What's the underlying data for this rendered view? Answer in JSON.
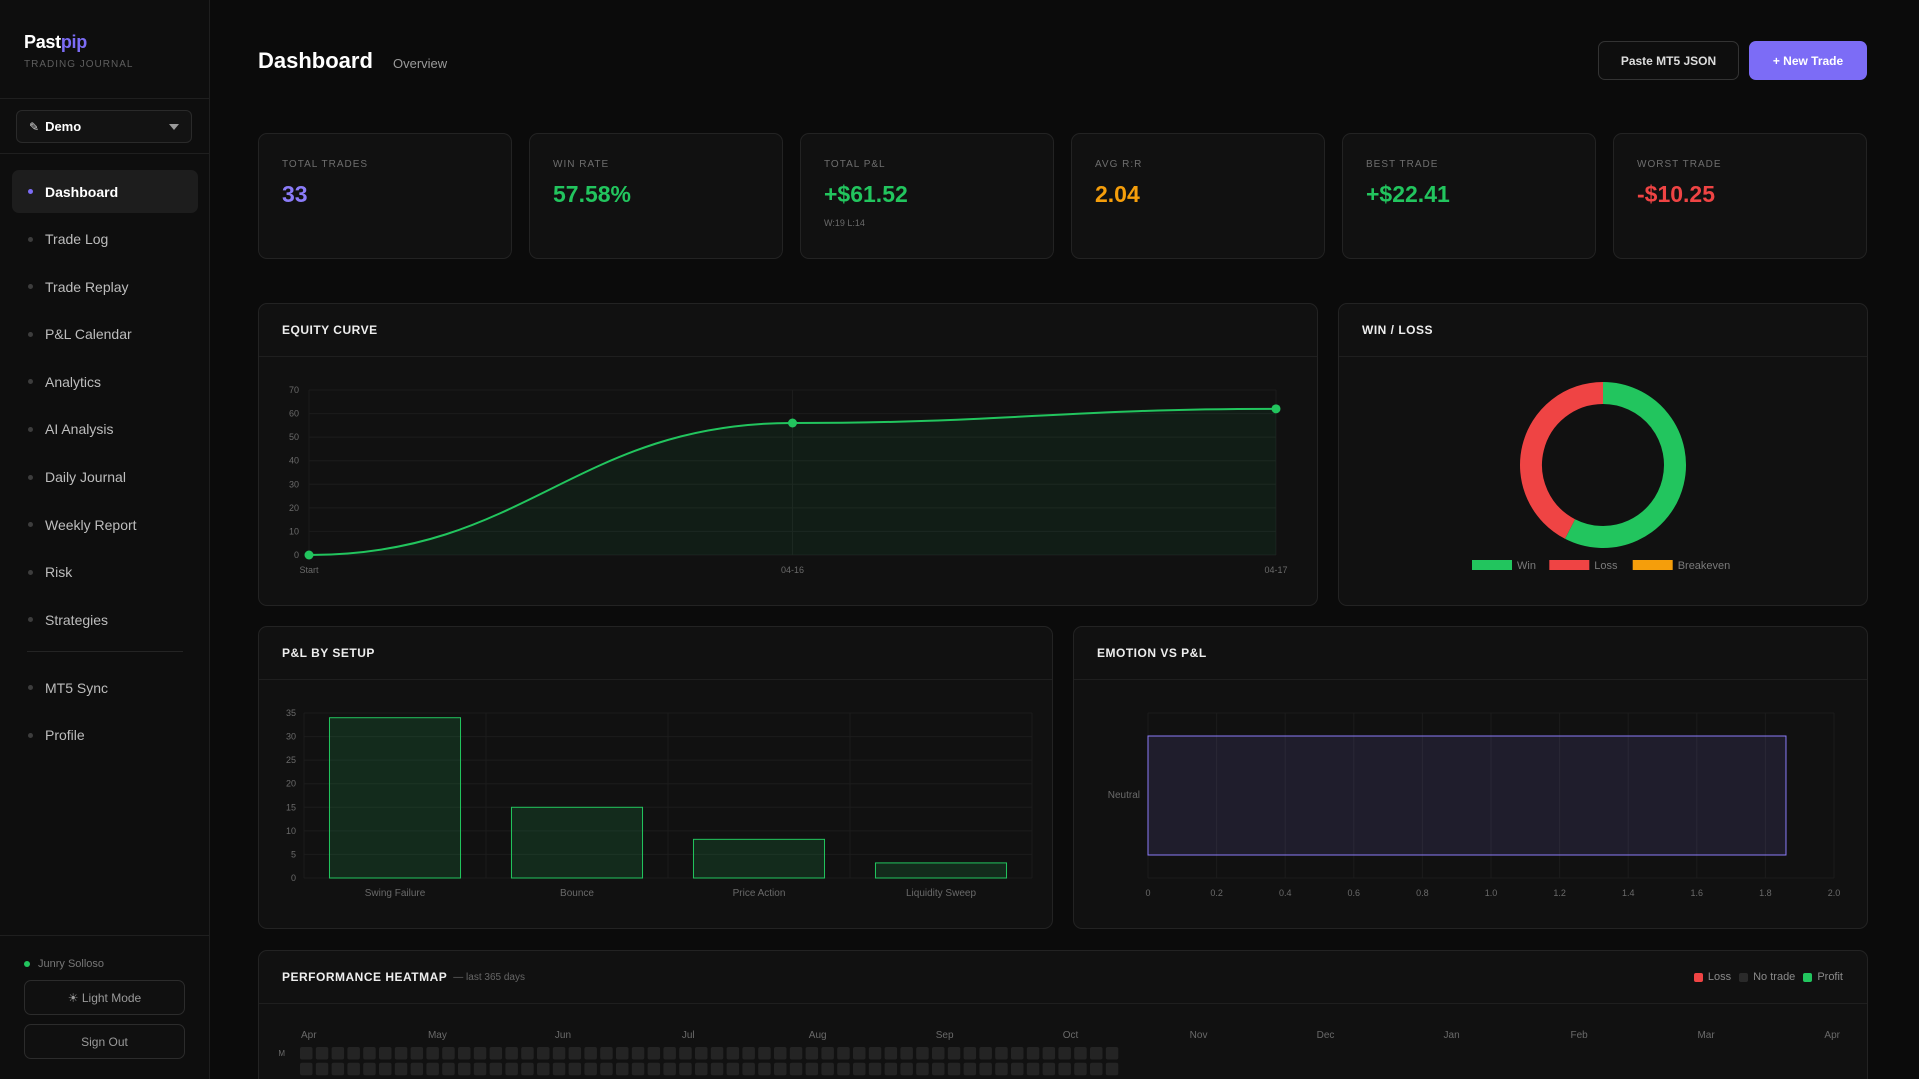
{
  "brand": {
    "name_main": "Past",
    "name_accent": "pip",
    "subtitle": "TRADING JOURNAL"
  },
  "account": {
    "selected": "Demo"
  },
  "nav": {
    "items": [
      {
        "label": "Dashboard",
        "active": true
      },
      {
        "label": "Trade Log"
      },
      {
        "label": "Trade Replay"
      },
      {
        "label": "P&L Calendar"
      },
      {
        "label": "Analytics"
      },
      {
        "label": "AI Analysis"
      },
      {
        "label": "Daily Journal"
      },
      {
        "label": "Weekly Report"
      },
      {
        "label": "Risk"
      },
      {
        "label": "Strategies"
      }
    ],
    "secondary": [
      {
        "label": "MT5 Sync"
      },
      {
        "label": "Profile"
      }
    ]
  },
  "user": {
    "name": "Junry Solloso"
  },
  "sidebar_buttons": {
    "light_mode": "☀ Light Mode",
    "sign_out": "Sign Out"
  },
  "header": {
    "title": "Dashboard",
    "subtitle": "Overview",
    "paste_label": "Paste MT5 JSON",
    "new_trade_label": "+ New Trade"
  },
  "stats": [
    {
      "label": "Total Trades",
      "value": "33",
      "color": "#8b7cf8"
    },
    {
      "label": "Win Rate",
      "value": "57.58%",
      "color": "#22c55e"
    },
    {
      "label": "Total P&L",
      "value": "+$61.52",
      "color": "#22c55e",
      "note": "W:19 L:14"
    },
    {
      "label": "Avg R:R",
      "value": "2.04",
      "color": "#f59e0b"
    },
    {
      "label": "Best Trade",
      "value": "+$22.41",
      "color": "#22c55e"
    },
    {
      "label": "Worst Trade",
      "value": "-$10.25",
      "color": "#ef4444"
    }
  ],
  "panels": {
    "equity": "EQUITY CURVE",
    "winloss": "WIN / LOSS",
    "setup": "P&L BY SETUP",
    "emotion": "EMOTION VS P&L",
    "heatmap": "PERFORMANCE HEATMAP",
    "heatmap_sub": "— last 365 days"
  },
  "chart_data": [
    {
      "type": "line",
      "x": [
        "Start",
        "04-16",
        "04-17"
      ],
      "values": [
        0,
        56,
        62
      ],
      "ylim": [
        0,
        70
      ],
      "yticks": [
        0,
        10,
        20,
        30,
        40,
        50,
        60,
        70
      ],
      "color": "#22c55e"
    },
    {
      "type": "pie",
      "categories": [
        "Win",
        "Loss",
        "Breakeven"
      ],
      "values": [
        19,
        14,
        0
      ],
      "colors": [
        "#22c55e",
        "#ef4444",
        "#f59e0b"
      ],
      "legend": "bottom"
    },
    {
      "type": "bar",
      "categories": [
        "Swing Failure",
        "Bounce",
        "Price Action",
        "Liquidity Sweep"
      ],
      "values": [
        34,
        15,
        8.2,
        3.2
      ],
      "ylim": [
        0,
        35
      ],
      "yticks": [
        0,
        5,
        10,
        15,
        20,
        25,
        30,
        35
      ],
      "color": "#22c55e"
    },
    {
      "type": "bar",
      "orientation": "horizontal",
      "categories": [
        "Neutral"
      ],
      "values": [
        1.86
      ],
      "xlim": [
        0,
        2.0
      ],
      "xticks": [
        "0",
        "0.2",
        "0.4",
        "0.6",
        "0.8",
        "1.0",
        "1.2",
        "1.4",
        "1.6",
        "1.8",
        "2.0"
      ],
      "color": "#8b7cf8"
    },
    {
      "type": "heatmap",
      "months": [
        "Apr",
        "May",
        "Jun",
        "Jul",
        "Aug",
        "Sep",
        "Oct",
        "Nov",
        "Dec",
        "Jan",
        "Feb",
        "Mar",
        "Apr"
      ],
      "row_label": "M",
      "legend": [
        {
          "label": "Loss",
          "color": "#ef4444"
        },
        {
          "label": "No trade",
          "color": "#2a2a2a"
        },
        {
          "label": "Profit",
          "color": "#22c55e"
        }
      ]
    }
  ]
}
